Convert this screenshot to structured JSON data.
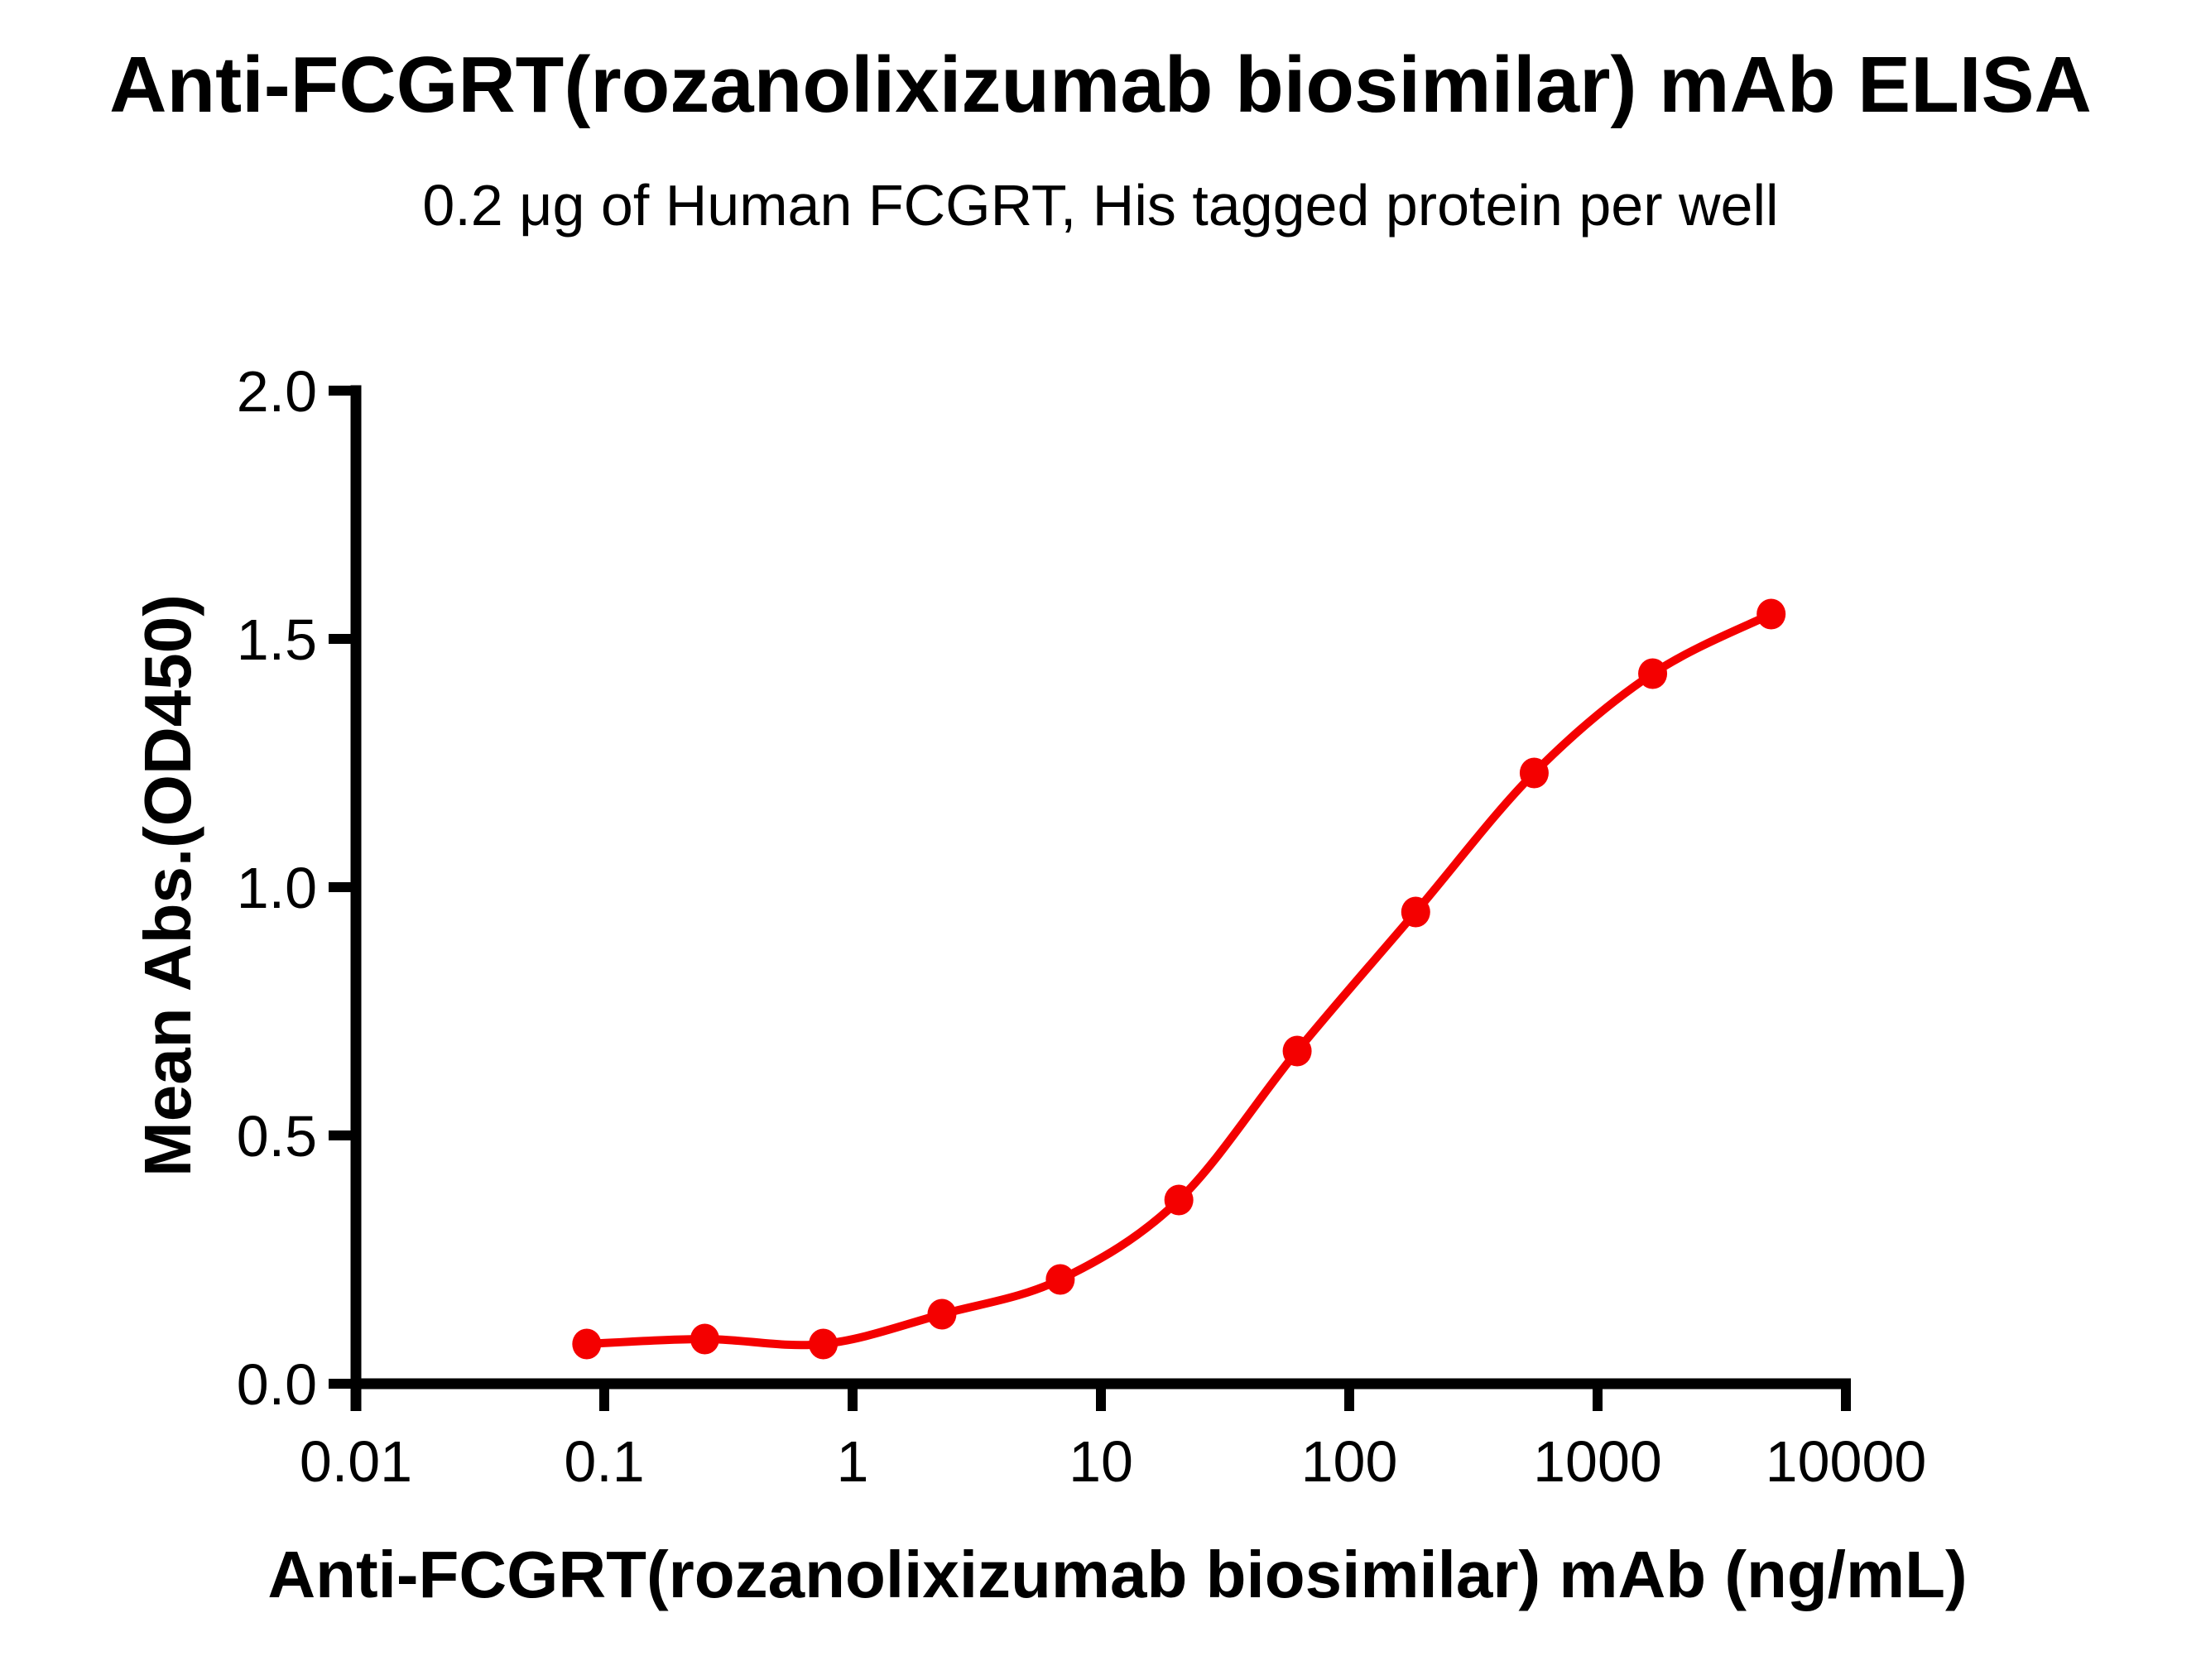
{
  "chart_data": {
    "type": "line",
    "title": "Anti-FCGRT(rozanolixizumab biosimilar) mAb ELISA",
    "subtitle": "0.2 μg of Human FCGRT, His tagged protein per well",
    "xlabel": "Anti-FCGRT(rozanolixizumab biosimilar) mAb (ng/mL)",
    "ylabel": "Mean Abs.(OD450)",
    "x_scale": "log10",
    "xlim": [
      0.01,
      10000
    ],
    "ylim": [
      0.0,
      2.0
    ],
    "grid": false,
    "legend": "none",
    "x_tick_labels": [
      "0.01",
      "0.1",
      "1",
      "10",
      "100",
      "1000",
      "10000"
    ],
    "y_tick_labels": [
      "0.0",
      "0.5",
      "1.0",
      "1.5",
      "2.0"
    ],
    "axis_color": "#000000",
    "series": [
      {
        "name": "Anti-FCGRT(rozanolixizumab biosimilar) mAb",
        "color": "#F40000",
        "marker": "circle",
        "x": [
          0.085,
          0.254,
          0.762,
          2.29,
          6.86,
          20.6,
          61.7,
          185.2,
          555.6,
          1666.7,
          5000
        ],
        "y": [
          0.08,
          0.09,
          0.08,
          0.14,
          0.21,
          0.37,
          0.67,
          0.95,
          1.23,
          1.43,
          1.55
        ]
      }
    ]
  }
}
